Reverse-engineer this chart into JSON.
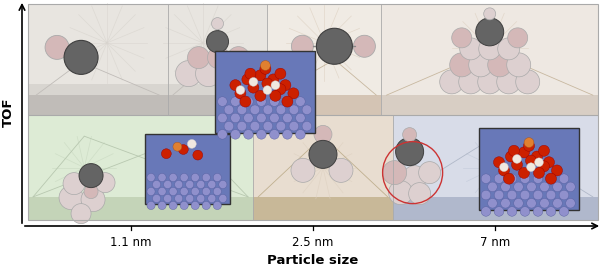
{
  "fig_width": 6.02,
  "fig_height": 2.64,
  "dpi": 100,
  "bg_color": "#ffffff",
  "tick_label_fontsize": 8.5,
  "axis_label_fontsize": 9.5,
  "y_label": "TOF",
  "x_label": "Particle size",
  "x_tick_labels": [
    "1.1 nm",
    "2.5 nm",
    "7 nm"
  ],
  "top_row_bg": "#d8d5d0",
  "top_row_light_bg": "#e8e5e0",
  "top_row_surface": "#c0bcb8",
  "top_beige_bg": "#f0ebe4",
  "top_beige_surface": "#d4c4b4",
  "top_right_bg": "#eee8e2",
  "top_right_surface": "#d8cec4",
  "bot_left_bg": "#ddebd5",
  "bot_mid_bg": "#e8ddd0",
  "bot_right_bg": "#d8dce8",
  "bot_left_surface": "#c4d4b8",
  "bot_mid_surface": "#c8b898",
  "bot_right_surface": "#b0b8cc",
  "ni_blue": "#8090cc",
  "ni_blue_dark": "#6070aa",
  "dark_atom": "#646464",
  "mid_atom": "#989898",
  "light_atom": "#ddd0d0",
  "pink_atom": "#d4b8b8",
  "ray_color_gray": "#d8d4ce",
  "ray_color_beige": "#ddd0c0",
  "ray_color_green": "#c8d8c0",
  "ray_color_blue": "#c0c8d8",
  "border_color": "#aaaaaa",
  "red_atom": "#cc2000",
  "orange_atom": "#e08030",
  "white_cream_atom": "#f0e8e0"
}
